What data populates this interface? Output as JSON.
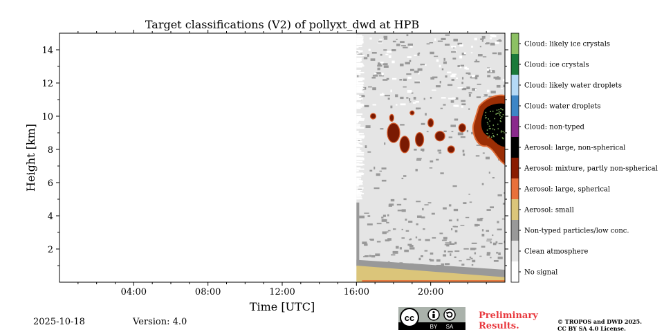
{
  "chart_data": {
    "type": "heatmap",
    "title": "Target classifications (V2) of pollyxt_dwd at HPB",
    "xlabel": "Time [UTC]",
    "ylabel": "Height [km]",
    "xlim": [
      0,
      24
    ],
    "ylim": [
      0,
      15
    ],
    "x_ticks": [
      {
        "value": 4,
        "label": "04:00"
      },
      {
        "value": 8,
        "label": "08:00"
      },
      {
        "value": 12,
        "label": "12:00"
      },
      {
        "value": 16,
        "label": "16:00"
      },
      {
        "value": 20,
        "label": "20:00"
      }
    ],
    "y_ticks": [
      {
        "value": 2,
        "label": "2"
      },
      {
        "value": 4,
        "label": "4"
      },
      {
        "value": 6,
        "label": "6"
      },
      {
        "value": 8,
        "label": "8"
      },
      {
        "value": 10,
        "label": "10"
      },
      {
        "value": 12,
        "label": "12"
      },
      {
        "value": 14,
        "label": "14"
      }
    ],
    "grid": false,
    "legend_position": "right colorbar",
    "classes": [
      {
        "label": "Cloud: likely ice crystals",
        "color": "#8cc063"
      },
      {
        "label": "Cloud: ice crystals",
        "color": "#1a7a3a"
      },
      {
        "label": "Cloud: likely water droplets",
        "color": "#b4d9f6"
      },
      {
        "label": "Cloud: water droplets",
        "color": "#3d86c6"
      },
      {
        "label": "Cloud: non-typed",
        "color": "#8a2a8c"
      },
      {
        "label": "Aerosol: large, non-spherical",
        "color": "#000000"
      },
      {
        "label": "Aerosol: mixture, partly non-spherical",
        "color": "#8a1c00"
      },
      {
        "label": "Aerosol: large, spherical",
        "color": "#e8703a"
      },
      {
        "label": "Aerosol: small",
        "color": "#dbc57a"
      },
      {
        "label": "Non-typed particles/low conc.",
        "color": "#999999"
      },
      {
        "label": "Clean atmosphere",
        "color": "#e5e5e5"
      },
      {
        "label": "No signal",
        "color": "#ffffff"
      }
    ],
    "regions": [
      {
        "class": "Clean atmosphere",
        "x": [
          16.0,
          24.0
        ],
        "y": [
          0.0,
          15.0
        ]
      },
      {
        "class": "Aerosol: small",
        "x": [
          16.0,
          24.0
        ],
        "y_top_start": 1.0,
        "y_top_end": 0.3
      },
      {
        "class": "Non-typed particles/low conc.",
        "x": [
          16.0,
          24.0
        ],
        "y": [
          1.0,
          4.8
        ],
        "description_level": "bands"
      },
      {
        "class": "Aerosol: large, non-spherical",
        "x": [
          22.2,
          24.0
        ],
        "y": [
          7.0,
          11.2
        ]
      },
      {
        "class": "Aerosol: mixture, partly non-spherical",
        "x": [
          18.0,
          24.0
        ],
        "y": [
          7.5,
          11.2
        ]
      }
    ]
  },
  "footer": {
    "date": "2025-10-18",
    "version": "Version: 4.0",
    "preliminary": "Preliminary Results.",
    "copyright_line1": "© TROPOS and DWD 2025.",
    "copyright_line2": "CC BY SA 4.0 License.",
    "license_badge": {
      "cc": "cc",
      "by": "BY",
      "sa": "SA"
    }
  }
}
